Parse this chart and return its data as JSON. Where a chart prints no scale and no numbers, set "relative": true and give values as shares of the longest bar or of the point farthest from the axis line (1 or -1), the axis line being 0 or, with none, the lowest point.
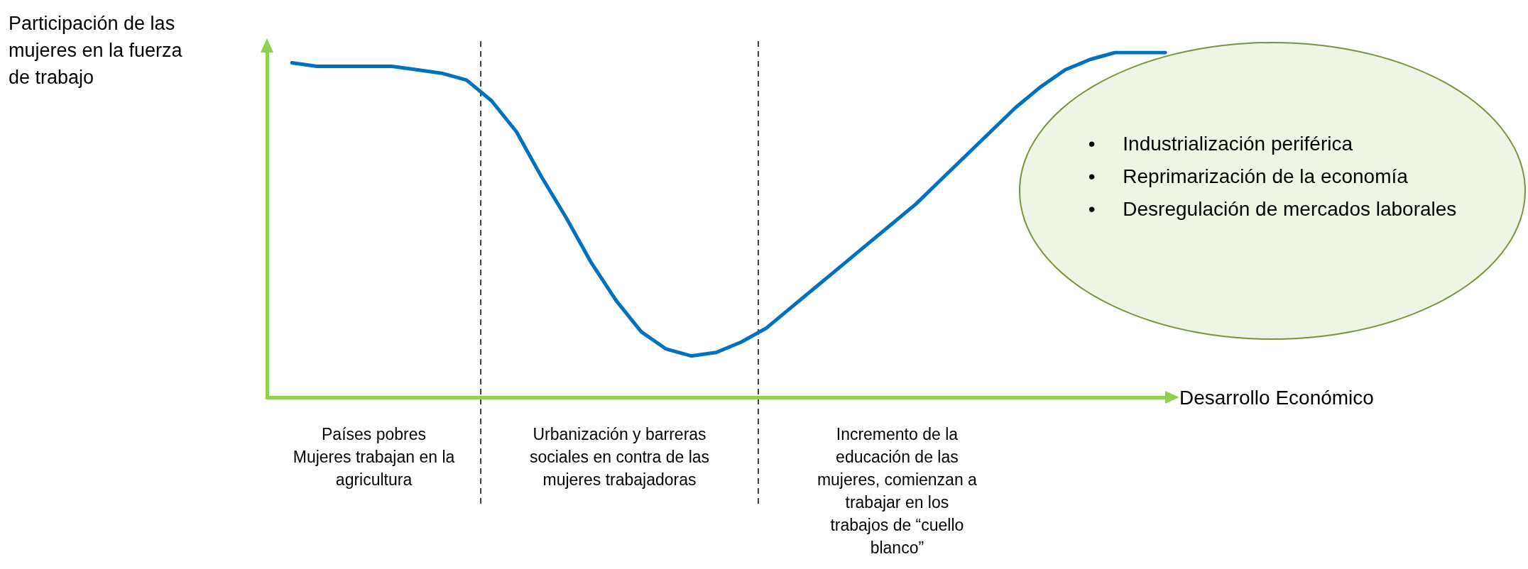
{
  "chart_data": {
    "type": "line",
    "relative": true,
    "ylabel": "Participación de las\nmujeres en la fuerza\nde trabajo",
    "xlabel": "Desarrollo Económico",
    "marker": "none",
    "line_style": "solid",
    "categories": [
      null,
      null,
      null,
      null,
      null,
      null,
      null,
      null,
      null,
      null,
      null,
      null,
      null,
      null,
      null,
      null,
      null,
      null,
      null,
      null,
      null,
      null,
      null,
      null,
      null,
      null,
      null,
      null,
      null,
      null,
      null,
      null,
      null,
      null,
      null,
      null,
      null
    ],
    "series": [
      {
        "color": "#0070c0",
        "values": [
          null,
          0.97,
          0.96,
          0.96,
          0.96,
          0.96,
          0.95,
          0.94,
          0.92,
          0.86,
          0.77,
          0.64,
          0.52,
          0.39,
          0.28,
          0.19,
          0.14,
          0.12,
          0.13,
          0.16,
          0.2,
          0.26,
          0.32,
          0.38,
          0.44,
          0.5,
          0.56,
          0.63,
          0.7,
          0.77,
          0.84,
          0.9,
          0.95,
          0.98,
          1,
          1,
          1
        ]
      }
    ],
    "annotations": [
      "Países pobres\nMujeres trabajan en la\nagricultura",
      "Urbanización y barreras\nsociales en contra de las\nmujeres trabajadoras",
      "Incremento de la\neducación de las\nmujeres, comienzan a\ntrabajar en los\ntrabajos de “cuello\nblanco”",
      "•     Industrialización periférica\n•     Reprimarización de la economía\n•     Desregulación de mercados laborales"
    ]
  }
}
